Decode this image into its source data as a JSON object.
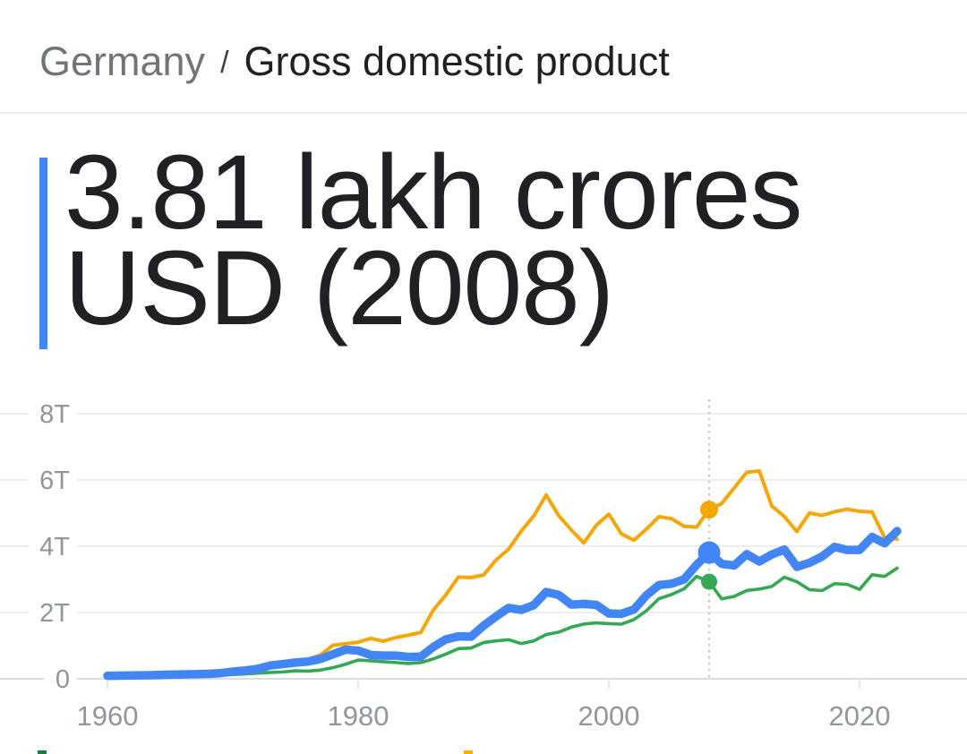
{
  "breadcrumb": {
    "country": "Germany",
    "separator": "/",
    "metric": "Gross domestic product"
  },
  "headline": {
    "value": "3.81 lakh crores USD (2008)",
    "accent_color": "#4285f4"
  },
  "chart_data": {
    "type": "line",
    "title": "Gross domestic product",
    "unit": "trillions USD",
    "grid": true,
    "xlim": [
      1960,
      2023
    ],
    "ylim": [
      0,
      8.9
    ],
    "x": [
      1960,
      1961,
      1962,
      1963,
      1964,
      1965,
      1966,
      1967,
      1968,
      1969,
      1970,
      1971,
      1972,
      1973,
      1974,
      1975,
      1976,
      1977,
      1978,
      1979,
      1980,
      1981,
      1982,
      1983,
      1984,
      1985,
      1986,
      1987,
      1988,
      1989,
      1990,
      1991,
      1992,
      1993,
      1994,
      1995,
      1996,
      1997,
      1998,
      1999,
      2000,
      2001,
      2002,
      2003,
      2004,
      2005,
      2006,
      2007,
      2008,
      2009,
      2010,
      2011,
      2012,
      2013,
      2014,
      2015,
      2016,
      2017,
      2018,
      2019,
      2020,
      2021,
      2022,
      2023
    ],
    "series": [
      {
        "id": "germany",
        "color": "#4285f4",
        "values": [
          0.09,
          0.095,
          0.1,
          0.106,
          0.116,
          0.125,
          0.133,
          0.14,
          0.15,
          0.17,
          0.216,
          0.25,
          0.3,
          0.4,
          0.445,
          0.49,
          0.52,
          0.6,
          0.74,
          0.88,
          0.85,
          0.72,
          0.7,
          0.7,
          0.66,
          0.67,
          0.96,
          1.19,
          1.28,
          1.27,
          1.6,
          1.88,
          2.14,
          2.08,
          2.22,
          2.62,
          2.53,
          2.24,
          2.26,
          2.23,
          1.97,
          1.96,
          2.09,
          2.52,
          2.83,
          2.87,
          3.0,
          3.44,
          3.81,
          3.47,
          3.42,
          3.76,
          3.54,
          3.75,
          3.9,
          3.38,
          3.5,
          3.69,
          3.98,
          3.89,
          3.89,
          4.28,
          4.09,
          4.46
        ]
      },
      {
        "id": "orange",
        "color": "#f6a609",
        "values": [
          0.044,
          0.054,
          0.061,
          0.07,
          0.082,
          0.091,
          0.106,
          0.124,
          0.147,
          0.172,
          0.212,
          0.24,
          0.318,
          0.432,
          0.48,
          0.521,
          0.586,
          0.721,
          1.013,
          1.055,
          1.105,
          1.218,
          1.134,
          1.243,
          1.318,
          1.398,
          2.078,
          2.532,
          3.071,
          3.054,
          3.132,
          3.584,
          3.908,
          4.454,
          4.907,
          5.545,
          4.923,
          4.492,
          4.098,
          4.636,
          4.968,
          4.374,
          4.182,
          4.519,
          4.893,
          4.831,
          4.601,
          4.579,
          5.106,
          5.289,
          5.759,
          6.233,
          6.272,
          5.212,
          4.897,
          4.444,
          5.004,
          4.931,
          5.041,
          5.118,
          5.055,
          5.034,
          4.256,
          4.213
        ]
      },
      {
        "id": "green",
        "color": "#34a853",
        "values": [
          0.073,
          0.078,
          0.081,
          0.086,
          0.094,
          0.101,
          0.107,
          0.111,
          0.104,
          0.112,
          0.131,
          0.148,
          0.169,
          0.192,
          0.206,
          0.242,
          0.232,
          0.263,
          0.336,
          0.439,
          0.565,
          0.541,
          0.515,
          0.49,
          0.462,
          0.489,
          0.601,
          0.745,
          0.91,
          0.927,
          1.093,
          1.143,
          1.179,
          1.062,
          1.14,
          1.335,
          1.408,
          1.558,
          1.652,
          1.687,
          1.665,
          1.649,
          1.785,
          2.054,
          2.417,
          2.544,
          2.714,
          3.09,
          2.93,
          2.412,
          2.485,
          2.663,
          2.707,
          2.786,
          3.065,
          2.928,
          2.689,
          2.662,
          2.871,
          2.851,
          2.697,
          3.141,
          3.089,
          3.34
        ]
      }
    ],
    "highlight": {
      "year": 2008,
      "points": [
        {
          "series": "germany",
          "value": 3.81
        },
        {
          "series": "orange",
          "value": 5.106
        },
        {
          "series": "green",
          "value": 2.93
        }
      ]
    },
    "y_ticks": [
      {
        "label": "0",
        "value": 0
      },
      {
        "label": "2T",
        "value": 2
      },
      {
        "label": "4T",
        "value": 4
      },
      {
        "label": "6T",
        "value": 6
      },
      {
        "label": "8T",
        "value": 8
      }
    ],
    "x_ticks": [
      {
        "label": "1960",
        "year": 1960
      },
      {
        "label": "1980",
        "year": 1980
      },
      {
        "label": "2000",
        "year": 2000
      },
      {
        "label": "2020",
        "year": 2020
      }
    ],
    "legend_cutoff_swatches": [
      {
        "id": "green",
        "color": "#188038"
      },
      {
        "id": "orange",
        "color": "#f9ab00"
      }
    ],
    "colors": {
      "gridline": "#eceeef",
      "baseline": "#dadce0",
      "tick": "#e2e5e8",
      "axis_label": "#8f969c",
      "highlight_line": "#c4c7ca"
    }
  }
}
